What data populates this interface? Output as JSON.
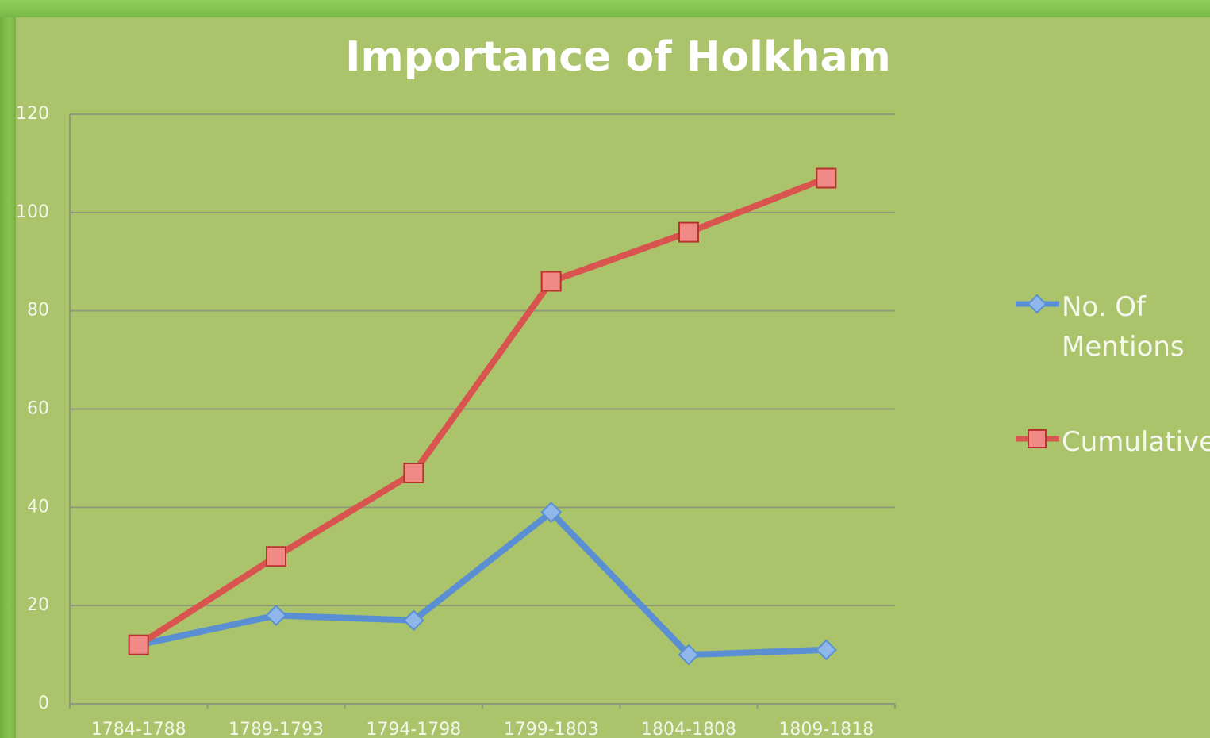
{
  "chart_data": {
    "type": "line",
    "title": "Importance of Holkham",
    "categories": [
      "1784-1788",
      "1789-1793",
      "1794-1798",
      "1799-1803",
      "1804-1808",
      "1809-1818"
    ],
    "series": [
      {
        "name": "No. Of Mentions",
        "color": "#5a8fd4",
        "marker": "diamond",
        "values": [
          12,
          18,
          17,
          39,
          10,
          11
        ]
      },
      {
        "name": "Cumulative",
        "color": "#d9534f",
        "marker": "square",
        "values": [
          12,
          30,
          47,
          86,
          96,
          107
        ]
      }
    ],
    "ylim": [
      0,
      120
    ],
    "yticks": [
      0,
      20,
      40,
      60,
      80,
      100,
      120
    ],
    "grid": true,
    "legend": "right"
  }
}
